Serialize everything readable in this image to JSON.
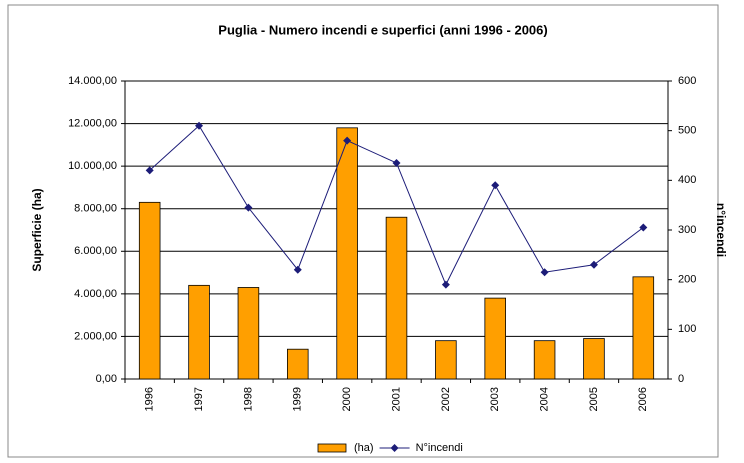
{
  "chart_data": {
    "type": "bar",
    "title": "Puglia - Numero incendi e superfici (anni 1996 - 2006)",
    "y_label": "Superficie (ha)",
    "y2_label": "n°incendi",
    "categories": [
      "1996",
      "1997",
      "1998",
      "1999",
      "2000",
      "2001",
      "2002",
      "2003",
      "2004",
      "2005",
      "2006"
    ],
    "series": [
      {
        "name": "(ha)",
        "type": "bar",
        "color": "#ff9f00",
        "values": [
          8300,
          4400,
          4300,
          1400,
          11800,
          7600,
          1800,
          3800,
          1800,
          1900,
          4800
        ]
      },
      {
        "name": "N°incendi",
        "type": "line",
        "axis": "y2",
        "color": "#1c1c78",
        "values": [
          420,
          510,
          345,
          220,
          480,
          435,
          190,
          390,
          215,
          230,
          305
        ]
      }
    ],
    "ylim": [
      0,
      14000
    ],
    "yticks": [
      {
        "value": 0,
        "label": "0,00"
      },
      {
        "value": 2000,
        "label": "2.000,00"
      },
      {
        "value": 4000,
        "label": "4.000,00"
      },
      {
        "value": 6000,
        "label": "6.000,00"
      },
      {
        "value": 8000,
        "label": "8.000,00"
      },
      {
        "value": 10000,
        "label": "10.000,00"
      },
      {
        "value": 12000,
        "label": "12.000,00"
      },
      {
        "value": 14000,
        "label": "14.000,00"
      }
    ],
    "y2lim": [
      0,
      600
    ],
    "y2ticks": [
      0,
      100,
      200,
      300,
      400,
      500,
      600
    ],
    "grid": true,
    "legend": "bottom"
  }
}
